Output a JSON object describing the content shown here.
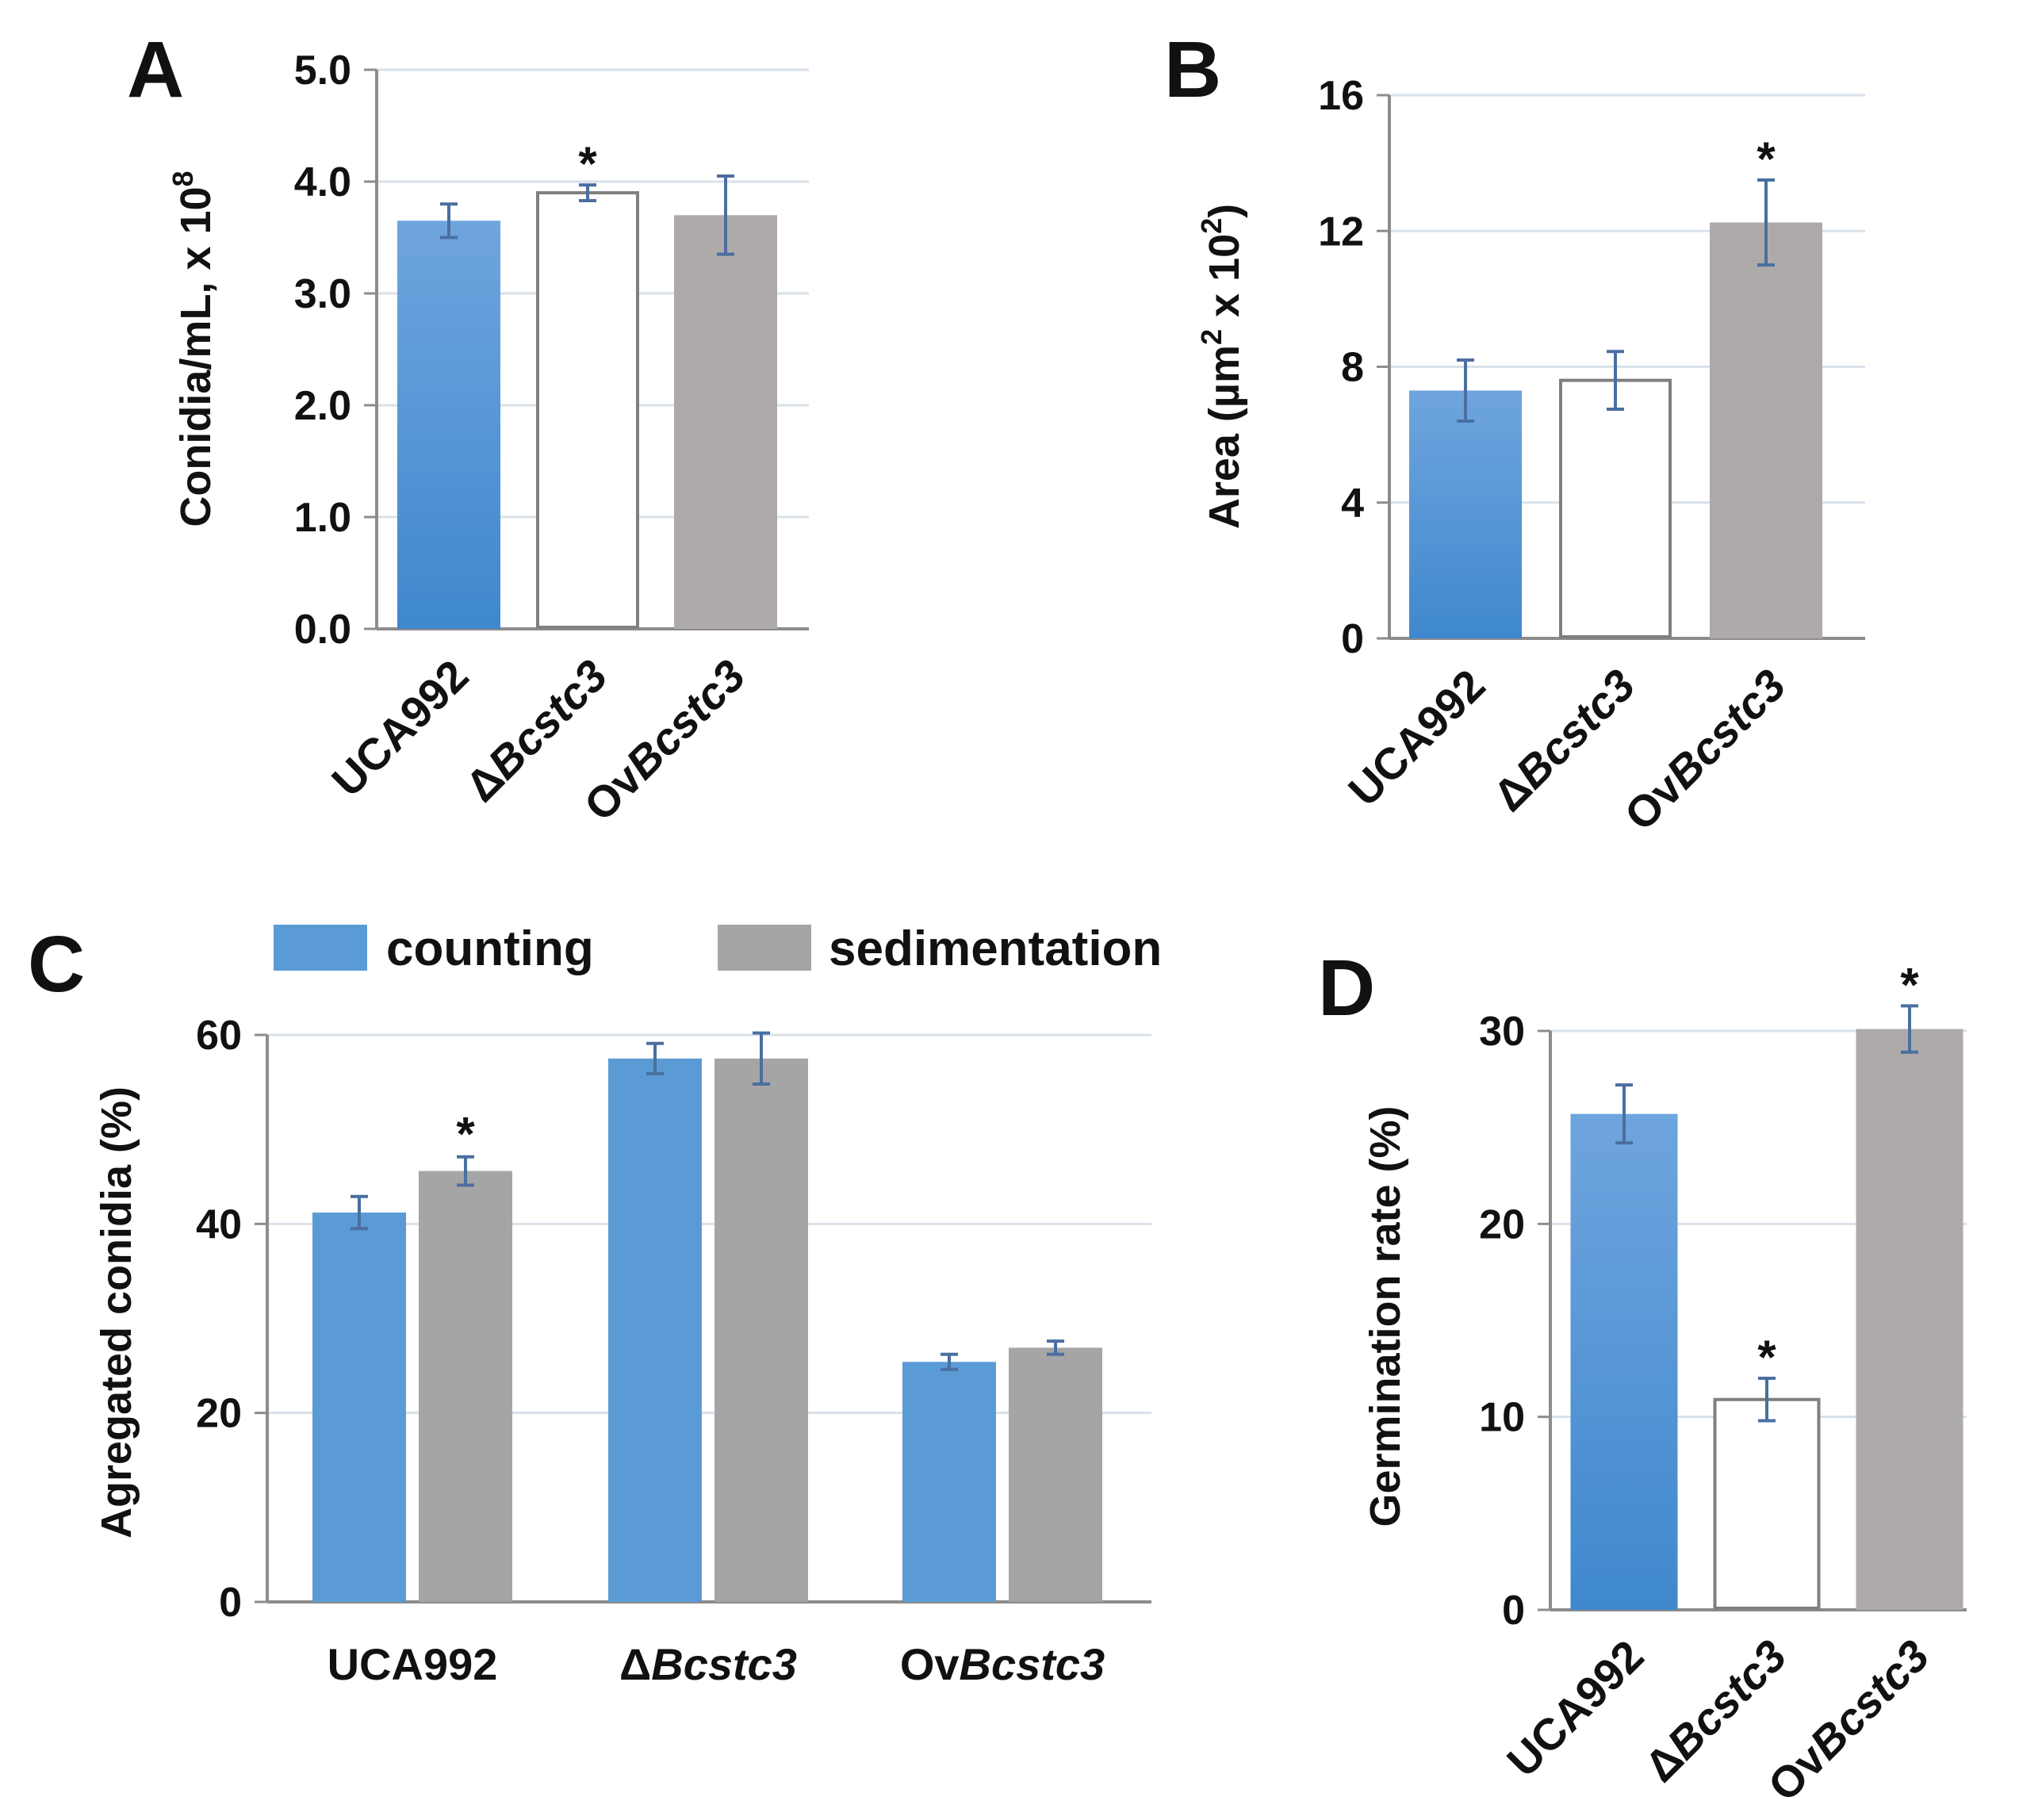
{
  "chart_data": [
    {
      "panel": "A",
      "type": "bar",
      "ylabel": "Conidia/mL, x 10",
      "ylabel_superscript": "8",
      "ylim": [
        0,
        5
      ],
      "yticks": [
        "0.0",
        "1.0",
        "2.0",
        "3.0",
        "4.0",
        "5.0"
      ],
      "categories": [
        {
          "prefix": "",
          "italic": "",
          "plain": "UCA992"
        },
        {
          "prefix": "Δ",
          "italic": "Bcstc3",
          "plain": ""
        },
        {
          "prefix": "Ov",
          "italic": "Bcstc3",
          "plain": ""
        }
      ],
      "values": [
        3.65,
        3.9,
        3.7
      ],
      "errors": [
        0.15,
        0.07,
        0.35
      ],
      "styles": [
        "blue",
        "white",
        "gray"
      ],
      "significance": [
        "",
        "*",
        ""
      ]
    },
    {
      "panel": "B",
      "type": "bar",
      "ylabel": "Area (µm",
      "ylabel_superscript": "2",
      "ylabel_mid": " x 10",
      "ylabel_superscript2": "2",
      "ylabel_end": ")",
      "ylim": [
        0,
        16
      ],
      "yticks": [
        "0",
        "4",
        "8",
        "12",
        "16"
      ],
      "categories": [
        {
          "prefix": "",
          "italic": "",
          "plain": "UCA992"
        },
        {
          "prefix": "Δ",
          "italic": "Bcstc3",
          "plain": ""
        },
        {
          "prefix": "Ov",
          "italic": "Bcstc3",
          "plain": ""
        }
      ],
      "values": [
        7.3,
        7.6,
        12.25
      ],
      "errors": [
        0.9,
        0.85,
        1.25
      ],
      "styles": [
        "blue",
        "white",
        "gray"
      ],
      "significance": [
        "",
        "",
        "*"
      ]
    },
    {
      "panel": "C",
      "type": "bar",
      "ylabel": "Agregated conidia  (%)",
      "ylim": [
        0,
        60
      ],
      "yticks": [
        "0",
        "20",
        "40",
        "60"
      ],
      "categories": [
        {
          "prefix": "",
          "italic": "",
          "plain": "UCA992"
        },
        {
          "prefix": "Δ",
          "italic": "Bcstc3",
          "plain": ""
        },
        {
          "prefix": "Ov",
          "italic": "Bcstc3",
          "plain": ""
        }
      ],
      "series": [
        {
          "name": "counting",
          "values": [
            41.2,
            57.5,
            25.4
          ],
          "errors": [
            1.7,
            1.6,
            0.8
          ],
          "significance": [
            "",
            "",
            ""
          ]
        },
        {
          "name": "sedimentation",
          "values": [
            45.6,
            57.5,
            26.9
          ],
          "errors": [
            1.5,
            2.7,
            0.7
          ],
          "significance": [
            "*",
            "",
            ""
          ]
        }
      ],
      "legend": [
        "counting",
        "sedimentation"
      ]
    },
    {
      "panel": "D",
      "type": "bar",
      "ylabel": "Germination rate (%)",
      "ylim": [
        0,
        30
      ],
      "yticks": [
        "0",
        "10",
        "20",
        "30"
      ],
      "categories": [
        {
          "prefix": "",
          "italic": "",
          "plain": "UCA992"
        },
        {
          "prefix": "Δ",
          "italic": "Bcstc3",
          "plain": ""
        },
        {
          "prefix": "Ov",
          "italic": "Bcstc3",
          "plain": ""
        }
      ],
      "values": [
        25.7,
        10.9,
        30.1
      ],
      "errors": [
        1.5,
        1.1,
        1.2
      ],
      "styles": [
        "blue",
        "white",
        "gray"
      ],
      "significance": [
        "",
        "*",
        "*"
      ]
    }
  ],
  "colors": {
    "blue_top": "#6fa5de",
    "blue_bottom": "#3f88ce",
    "blue_flat": "#5b9bd5",
    "gray_solid": "#aeaaaa",
    "gray_flat": "#a5a5a5",
    "white_edge": "#7f7f7f",
    "error_bar": "#4a6fa0",
    "grid": "#d9e1ea",
    "axis": "#8c8c8c"
  }
}
